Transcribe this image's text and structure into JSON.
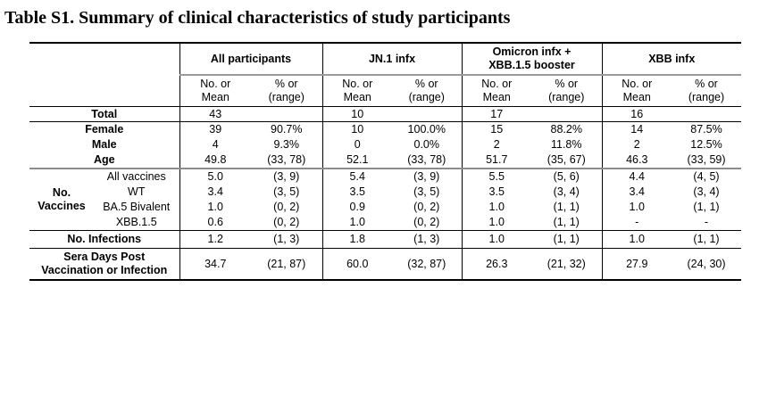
{
  "title": "Table S1. Summary of clinical characteristics of study participants",
  "colors": {
    "background": "#ffffff",
    "text": "#000000",
    "rule_black": "#000000",
    "rule_gray": "#8c8c8c"
  },
  "table": {
    "corner_label": "",
    "groups": [
      {
        "label": "All participants"
      },
      {
        "label": "JN.1 infx"
      },
      {
        "label": "Omicron infx +\nXBB.1.5 booster"
      },
      {
        "label": "XBB infx"
      }
    ],
    "subheaders": {
      "mean": "No. or\nMean",
      "range": "% or\n(range)"
    },
    "vaccines_label": "No.\nVaccines",
    "rows": [
      {
        "kind": "plain",
        "cls": "h16 bb",
        "label": "Total",
        "values": [
          "43",
          "",
          "10",
          "",
          "17",
          "",
          "16",
          ""
        ]
      },
      {
        "kind": "plain",
        "cls": "",
        "label": "Female",
        "values": [
          "39",
          "90.7%",
          "10",
          "100.0%",
          "15",
          "88.2%",
          "14",
          "87.5%"
        ]
      },
      {
        "kind": "plain",
        "cls": "",
        "label": "Male",
        "values": [
          "4",
          "9.3%",
          "0",
          "0.0%",
          "2",
          "11.8%",
          "2",
          "12.5%"
        ]
      },
      {
        "kind": "plain",
        "cls": "bg",
        "label": "Age",
        "values": [
          "49.8",
          "(33, 78)",
          "52.1",
          "(33, 78)",
          "51.7",
          "(35, 67)",
          "46.3",
          "(33, 59)"
        ]
      },
      {
        "kind": "vax-first",
        "cls": "",
        "sublabel": "All vaccines",
        "values": [
          "5.0",
          "(3, 9)",
          "5.4",
          "(3, 9)",
          "5.5",
          "(5, 6)",
          "4.4",
          "(4, 5)"
        ]
      },
      {
        "kind": "vax",
        "cls": "",
        "sublabel": "WT",
        "values": [
          "3.4",
          "(3, 5)",
          "3.5",
          "(3, 5)",
          "3.5",
          "(3, 4)",
          "3.4",
          "(3, 4)"
        ]
      },
      {
        "kind": "vax",
        "cls": "",
        "sublabel": "BA.5 Bivalent",
        "values": [
          "1.0",
          "(0, 2)",
          "0.9",
          "(0, 2)",
          "1.0",
          "(1, 1)",
          "1.0",
          "(1, 1)"
        ]
      },
      {
        "kind": "vax",
        "cls": "bb",
        "sublabel": "XBB.1.5",
        "values": [
          "0.6",
          "(0, 2)",
          "1.0",
          "(0, 2)",
          "1.0",
          "(1, 1)",
          "-",
          "-"
        ]
      },
      {
        "kind": "plain",
        "cls": "h19 bb",
        "label": "No. Infections",
        "values": [
          "1.2",
          "(1, 3)",
          "1.8",
          "(1, 3)",
          "1.0",
          "(1, 1)",
          "1.0",
          "(1, 1)"
        ]
      },
      {
        "kind": "plain",
        "cls": "h34",
        "label": "Sera Days Post\nVaccination or Infection",
        "values": [
          "34.7",
          "(21, 87)",
          "60.0",
          "(32, 87)",
          "26.3",
          "(21, 32)",
          "27.9",
          "(24, 30)"
        ]
      }
    ]
  }
}
